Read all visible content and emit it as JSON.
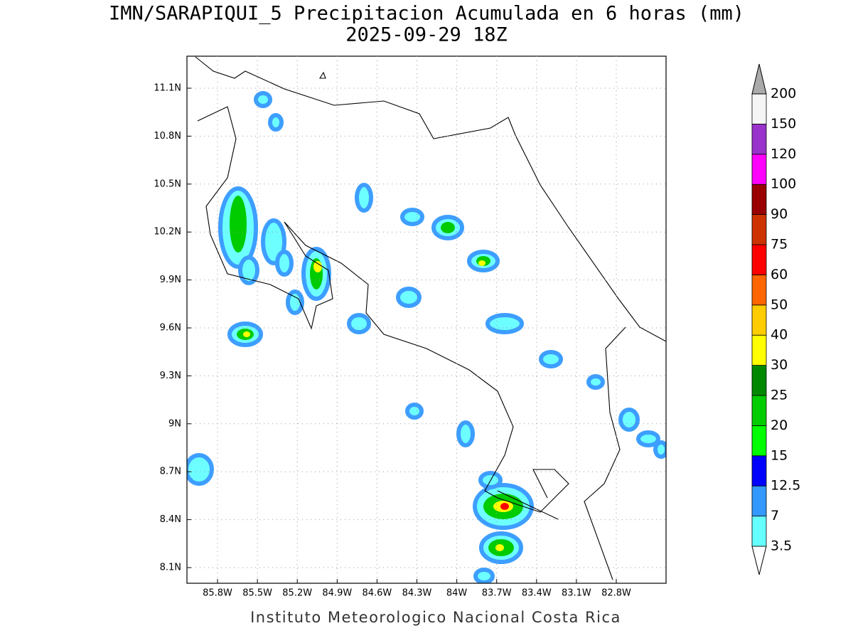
{
  "header": {
    "title": "IMN/SARAPIQUI_5 Precipitacion Acumulada en 6 horas (mm)",
    "subtitle": "2025-09-29 18Z"
  },
  "map": {
    "lon_ticks": [
      "85.8W",
      "85.5W",
      "85.2W",
      "84.9W",
      "84.6W",
      "84.3W",
      "84W",
      "83.7W",
      "83.4W",
      "83.1W",
      "82.8W"
    ],
    "lat_ticks": [
      "11.1N",
      "10.8N",
      "10.5N",
      "10.2N",
      "9.9N",
      "9.6N",
      "9.3N",
      "9N",
      "8.7N",
      "8.4N",
      "8.1N"
    ]
  },
  "colorbar": {
    "labels": [
      "3.5",
      "7",
      "12.5",
      "15",
      "20",
      "25",
      "30",
      "40",
      "50",
      "60",
      "75",
      "90",
      "100",
      "120",
      "150",
      "200"
    ],
    "colors": [
      "#66ffff",
      "#3399ff",
      "#0000ff",
      "#00ff00",
      "#00cc00",
      "#008800",
      "#ffff00",
      "#ffcc00",
      "#ff6600",
      "#ff0000",
      "#cc3300",
      "#990000",
      "#ff00ff",
      "#9933cc",
      "#f5f5f5"
    ],
    "under_color": "#ffffff",
    "over_color": "#aaaaaa"
  },
  "footer": "Instituto Meteorologico Nacional Costa Rica"
}
